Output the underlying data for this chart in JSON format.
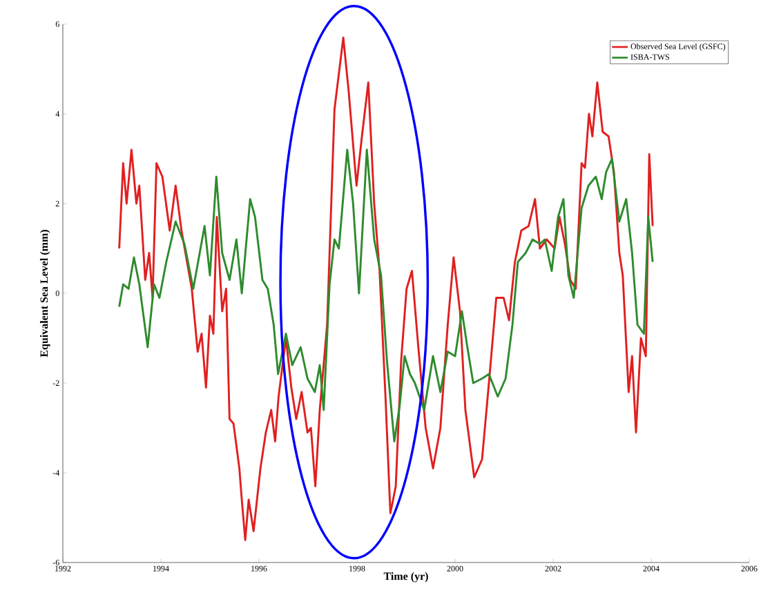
{
  "chart_data": {
    "type": "line",
    "xlabel": "Time (yr)",
    "ylabel": "Equivalent Sea Level (mm)",
    "xlim": [
      1992,
      2006
    ],
    "xticks": [
      1992,
      1994,
      1996,
      1998,
      2000,
      2002,
      2004,
      2006
    ],
    "ylim": [
      -6,
      6
    ],
    "yticks": [
      -6,
      -4,
      -2,
      0,
      2,
      4,
      6
    ],
    "grid": false,
    "legend": "top right",
    "marker": "none",
    "line_style": "solid",
    "series": [
      {
        "name": "Observed Sea Level (GSFC)",
        "color": "#e02020",
        "x": [
          1993.15,
          1993.23,
          1993.3,
          1993.4,
          1993.5,
          1993.56,
          1993.68,
          1993.76,
          1993.83,
          1993.91,
          1994.03,
          1994.18,
          1994.3,
          1994.42,
          1994.63,
          1994.75,
          1994.83,
          1994.92,
          1995.0,
          1995.07,
          1995.14,
          1995.25,
          1995.33,
          1995.4,
          1995.48,
          1995.6,
          1995.65,
          1995.72,
          1995.79,
          1995.89,
          1996.03,
          1996.14,
          1996.25,
          1996.33,
          1996.4,
          1996.55,
          1996.66,
          1996.76,
          1996.87,
          1996.99,
          1997.06,
          1997.15,
          1997.24,
          1997.39,
          1997.54,
          1997.72,
          1997.83,
          1997.99,
          1998.1,
          1998.23,
          1998.35,
          1998.46,
          1998.58,
          1998.68,
          1998.79,
          1998.9,
          1999.01,
          1999.12,
          1999.25,
          1999.4,
          1999.55,
          1999.7,
          1999.85,
          1999.97,
          2000.1,
          2000.21,
          2000.39,
          2000.55,
          2000.69,
          2000.84,
          2000.99,
          2001.1,
          2001.22,
          2001.35,
          2001.5,
          2001.63,
          2001.73,
          2001.87,
          2002.03,
          2002.13,
          2002.24,
          2002.35,
          2002.46,
          2002.58,
          2002.65,
          2002.73,
          2002.8,
          2002.9,
          2003.01,
          2003.13,
          2003.24,
          2003.35,
          2003.42,
          2003.54,
          2003.61,
          2003.69,
          2003.79,
          2003.89,
          2003.96,
          2004.03
        ],
        "values": [
          1.0,
          2.9,
          2.0,
          3.2,
          2.0,
          2.4,
          0.3,
          0.9,
          -0.1,
          2.9,
          2.6,
          1.4,
          2.4,
          1.4,
          0.1,
          -1.3,
          -0.9,
          -2.1,
          -0.5,
          -0.9,
          1.7,
          -0.4,
          0.1,
          -2.8,
          -2.9,
          -3.9,
          -4.6,
          -5.5,
          -4.6,
          -5.3,
          -3.9,
          -3.1,
          -2.6,
          -3.3,
          -2.3,
          -1.0,
          -2.1,
          -2.8,
          -2.2,
          -3.1,
          -3.0,
          -4.3,
          -2.6,
          -0.7,
          4.1,
          5.7,
          4.5,
          2.4,
          3.5,
          4.7,
          2.0,
          0.5,
          -2.3,
          -4.9,
          -4.3,
          -1.5,
          0.1,
          0.5,
          -1.2,
          -3.0,
          -3.9,
          -3.0,
          -0.7,
          0.8,
          -0.4,
          -2.6,
          -4.1,
          -3.7,
          -2.0,
          -0.1,
          -0.1,
          -0.6,
          0.7,
          1.4,
          1.5,
          2.1,
          1.0,
          1.2,
          1.0,
          1.7,
          1.1,
          0.3,
          0.1,
          2.9,
          2.8,
          4.0,
          3.5,
          4.7,
          3.6,
          3.5,
          2.7,
          0.9,
          0.4,
          -2.2,
          -1.4,
          -3.1,
          -1.0,
          -1.4,
          3.1,
          1.5
        ]
      },
      {
        "name": "ISBA-TWS",
        "color": "#2e8b2e",
        "x": [
          1993.15,
          1993.23,
          1993.34,
          1993.45,
          1993.56,
          1993.73,
          1993.86,
          1993.97,
          1994.11,
          1994.3,
          1994.48,
          1994.66,
          1994.89,
          1995.0,
          1995.13,
          1995.25,
          1995.4,
          1995.54,
          1995.65,
          1995.82,
          1995.92,
          1996.07,
          1996.18,
          1996.3,
          1996.39,
          1996.55,
          1996.68,
          1996.85,
          1996.99,
          1997.14,
          1997.24,
          1997.32,
          1997.44,
          1997.54,
          1997.63,
          1997.8,
          1997.92,
          1998.04,
          1998.2,
          1998.35,
          1998.49,
          1998.61,
          1998.76,
          1998.87,
          1998.97,
          1999.08,
          1999.18,
          1999.37,
          1999.55,
          1999.7,
          1999.85,
          2000.0,
          2000.14,
          2000.25,
          2000.37,
          2000.55,
          2000.69,
          2000.87,
          2001.03,
          2001.17,
          2001.28,
          2001.44,
          2001.58,
          2001.73,
          2001.83,
          2001.97,
          2002.1,
          2002.21,
          2002.31,
          2002.42,
          2002.58,
          2002.72,
          2002.87,
          2002.99,
          2003.08,
          2003.2,
          2003.35,
          2003.49,
          2003.61,
          2003.72,
          2003.85,
          2003.94,
          2004.03
        ],
        "values": [
          -0.3,
          0.2,
          0.1,
          0.8,
          0.2,
          -1.2,
          0.2,
          -0.1,
          0.7,
          1.6,
          1.1,
          0.1,
          1.5,
          0.4,
          2.6,
          0.9,
          0.3,
          1.2,
          0.0,
          2.1,
          1.7,
          0.3,
          0.1,
          -0.7,
          -1.8,
          -0.9,
          -1.6,
          -1.2,
          -1.9,
          -2.2,
          -1.6,
          -2.6,
          0.2,
          1.2,
          1.0,
          3.2,
          2.0,
          0.0,
          3.2,
          1.2,
          0.4,
          -1.5,
          -3.3,
          -2.5,
          -1.4,
          -1.8,
          -2.0,
          -2.6,
          -1.4,
          -2.2,
          -1.3,
          -1.4,
          -0.4,
          -1.2,
          -2.0,
          -1.9,
          -1.8,
          -2.3,
          -1.9,
          -0.7,
          0.7,
          0.9,
          1.2,
          1.1,
          1.2,
          0.5,
          1.7,
          2.1,
          0.4,
          -0.1,
          1.9,
          2.4,
          2.6,
          2.1,
          2.7,
          3.0,
          1.6,
          2.1,
          0.9,
          -0.7,
          -0.9,
          1.7,
          0.7
        ]
      }
    ]
  }
}
